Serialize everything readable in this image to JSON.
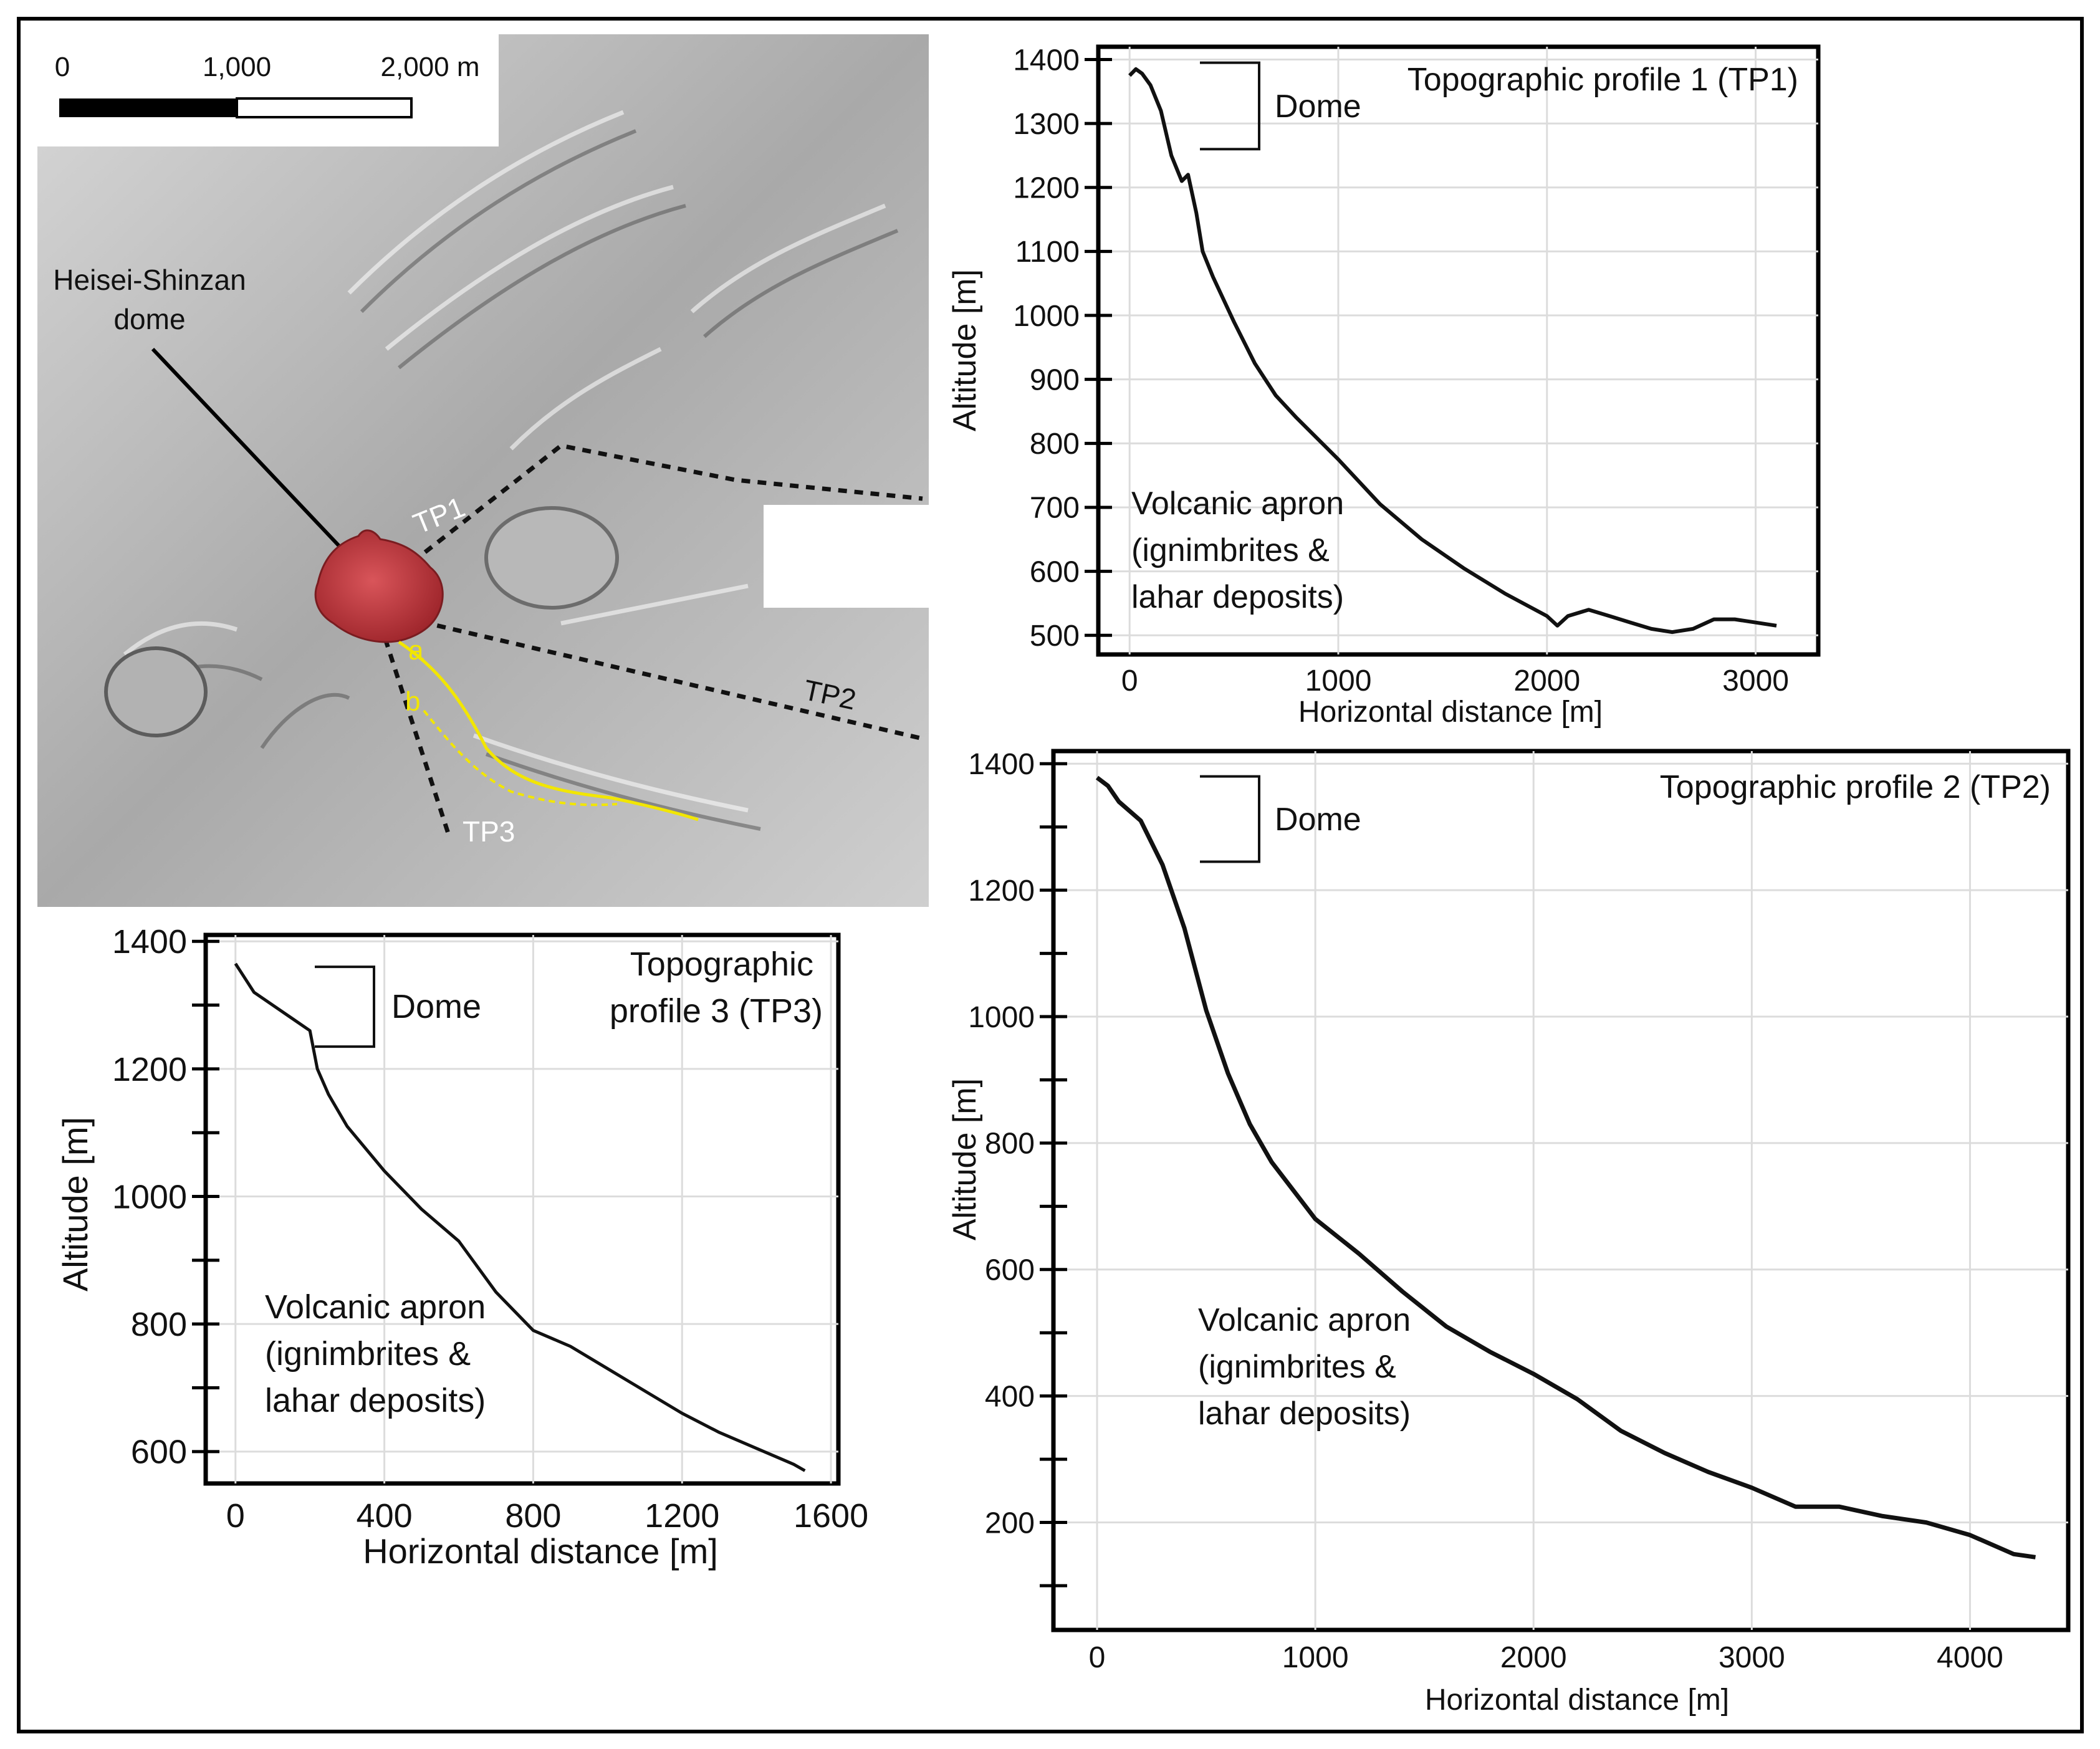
{
  "map": {
    "scale_ticks": [
      "0",
      "1,000",
      "2,000 m"
    ],
    "callout": [
      "Heisei-Shinzan",
      "dome"
    ],
    "profile_labels": [
      "TP1",
      "TP2",
      "TP3"
    ],
    "path_labels": [
      "a",
      "b"
    ],
    "colors": {
      "dome": "#c0333a",
      "path": "#f2e600",
      "shade": "#9a9a9a",
      "profile_line": "#111111"
    }
  },
  "chart_data": [
    {
      "type": "line",
      "title": "Topographic profile 1 (TP1)",
      "xlabel": "Horizontal distance [m]",
      "ylabel": "Altitude [m]",
      "xlim": [
        -150,
        3300
      ],
      "ylim": [
        470,
        1420
      ],
      "xticks": [
        0,
        1000,
        2000,
        3000
      ],
      "yticks": [
        500,
        600,
        700,
        800,
        900,
        1000,
        1100,
        1200,
        1300,
        1400
      ],
      "grid": true,
      "annotations": {
        "dome": "Dome",
        "dome_range": [
          1260,
          1395
        ],
        "apron": [
          "Volcanic apron",
          "(ignimbrites &",
          "lahar deposits)"
        ]
      },
      "series": [
        {
          "x": [
            0,
            30,
            60,
            100,
            150,
            200,
            250,
            280,
            320,
            350,
            400,
            500,
            600,
            700,
            800,
            1000,
            1200,
            1400,
            1600,
            1800,
            2000,
            2050,
            2100,
            2200,
            2300,
            2400,
            2500,
            2600,
            2700,
            2800,
            2900,
            3000,
            3100
          ],
          "y": [
            1375,
            1385,
            1378,
            1360,
            1320,
            1250,
            1210,
            1220,
            1160,
            1100,
            1060,
            990,
            925,
            875,
            840,
            775,
            705,
            650,
            605,
            565,
            530,
            515,
            530,
            540,
            530,
            520,
            510,
            505,
            510,
            525,
            525,
            520,
            515
          ]
        }
      ]
    },
    {
      "type": "line",
      "title": "Topographic profile 2 (TP2)",
      "xlabel": "Horizontal distance [m]",
      "ylabel": "Altitude [m]",
      "xlim": [
        -200,
        4450
      ],
      "ylim": [
        30,
        1420
      ],
      "xticks": [
        0,
        1000,
        2000,
        3000,
        4000
      ],
      "yticks": [
        200,
        400,
        600,
        800,
        1000,
        1200,
        1400
      ],
      "minor_yticks": [
        100,
        300,
        500,
        700,
        900,
        1100,
        1300
      ],
      "grid": true,
      "annotations": {
        "dome": "Dome",
        "dome_range": [
          1245,
          1380
        ],
        "apron": [
          "Volcanic apron",
          "(ignimbrites &",
          "lahar deposits)"
        ]
      },
      "series": [
        {
          "x": [
            0,
            50,
            100,
            200,
            300,
            400,
            500,
            600,
            700,
            800,
            900,
            1000,
            1200,
            1400,
            1600,
            1800,
            2000,
            2200,
            2400,
            2600,
            2800,
            3000,
            3200,
            3400,
            3600,
            3800,
            4000,
            4200,
            4300
          ],
          "y": [
            1378,
            1365,
            1340,
            1310,
            1240,
            1140,
            1010,
            910,
            830,
            770,
            725,
            680,
            625,
            565,
            510,
            470,
            435,
            395,
            345,
            310,
            280,
            255,
            225,
            225,
            210,
            200,
            180,
            150,
            145
          ]
        }
      ]
    },
    {
      "type": "line",
      "title": "Topographic profile 3 (TP3)",
      "title_lines": [
        "Topographic",
        "profile 3 (TP3)"
      ],
      "xlabel": "Horizontal distance [m]",
      "ylabel": "Altitude [m]",
      "xlim": [
        -80,
        1620
      ],
      "ylim": [
        550,
        1410
      ],
      "xticks": [
        0,
        400,
        800,
        1200,
        1600
      ],
      "yticks": [
        600,
        800,
        1000,
        1200,
        1400
      ],
      "minor_yticks": [
        700,
        900,
        1100,
        1300
      ],
      "grid": true,
      "annotations": {
        "dome": "Dome",
        "dome_range": [
          1235,
          1360
        ],
        "apron": [
          "Volcanic apron",
          "(ignimbrites &",
          "lahar deposits)"
        ]
      },
      "series": [
        {
          "x": [
            0,
            50,
            100,
            150,
            200,
            220,
            250,
            300,
            400,
            500,
            600,
            700,
            800,
            900,
            1000,
            1100,
            1200,
            1300,
            1400,
            1500,
            1530
          ],
          "y": [
            1365,
            1320,
            1300,
            1280,
            1260,
            1200,
            1160,
            1110,
            1040,
            980,
            930,
            850,
            790,
            765,
            730,
            695,
            660,
            630,
            605,
            580,
            570
          ]
        }
      ]
    }
  ]
}
